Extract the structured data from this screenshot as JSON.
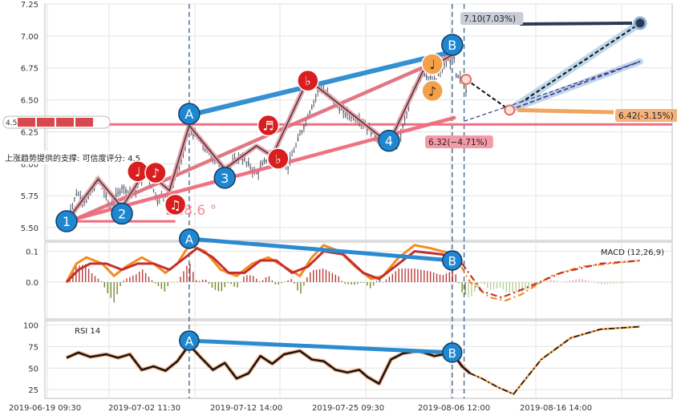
{
  "chart_data": [
    {
      "type": "candlestick",
      "panel": "price",
      "ylim": [
        5.4,
        7.25
      ],
      "yticks": [
        5.5,
        5.75,
        6.0,
        6.25,
        6.5,
        6.75,
        7.0,
        7.25
      ],
      "ytick_labels": [
        "5.50",
        "5.75",
        "6.00",
        "6.25",
        "6.50",
        "6.75",
        "7.00",
        "7.25"
      ],
      "xticks": [
        "2019-06-19 09:30",
        "2019-07-02 11:30",
        "2019-07-12 14:00",
        "2019-07-25 09:30",
        "2019-08-06 12:00",
        "2019-08-16 14:00"
      ],
      "close_path": [
        [
          0,
          5.55
        ],
        [
          5,
          5.77
        ],
        [
          10,
          5.7
        ],
        [
          16,
          5.88
        ],
        [
          22,
          5.66
        ],
        [
          28,
          5.82
        ],
        [
          34,
          5.76
        ],
        [
          40,
          5.94
        ],
        [
          46,
          5.72
        ],
        [
          52,
          5.79
        ],
        [
          58,
          6.02
        ],
        [
          62,
          6.28
        ],
        [
          70,
          6.12
        ],
        [
          80,
          5.95
        ],
        [
          88,
          6.06
        ],
        [
          96,
          5.92
        ],
        [
          104,
          6.1
        ],
        [
          112,
          5.98
        ],
        [
          120,
          6.3
        ],
        [
          128,
          6.6
        ],
        [
          134,
          6.52
        ],
        [
          140,
          6.4
        ],
        [
          148,
          6.35
        ],
        [
          156,
          6.22
        ],
        [
          163,
          6.14
        ],
        [
          168,
          6.18
        ],
        [
          174,
          6.5
        ],
        [
          180,
          6.72
        ],
        [
          186,
          6.64
        ],
        [
          192,
          6.8
        ],
        [
          196,
          6.82
        ],
        [
          197,
          6.68
        ],
        [
          200,
          6.66
        ],
        [
          202,
          6.58
        ]
      ],
      "wave_points": [
        {
          "label": "1",
          "x": 0,
          "y": 5.5
        },
        {
          "label": "2",
          "x": 28,
          "y": 5.56
        },
        {
          "label": "3",
          "x": 80,
          "y": 5.84
        },
        {
          "label": "4",
          "x": 163,
          "y": 6.13
        },
        {
          "label": "A",
          "x": 62,
          "y": 6.34
        },
        {
          "label": "B",
          "x": 195,
          "y": 6.88
        }
      ],
      "pattern_lines": [
        {
          "from": [
            5,
            5.57
          ],
          "to": [
            196,
            6.86
          ],
          "color": "#e0707f"
        },
        {
          "from": [
            0,
            5.55
          ],
          "to": [
            196,
            6.36
          ],
          "color": "#f06b7c"
        },
        {
          "from": [
            62,
            6.38
          ],
          "to": [
            196,
            6.88
          ],
          "color": "#2a8bd0"
        }
      ],
      "notes": [
        {
          "glyph": "♩",
          "x": 36,
          "y": 5.94
        },
        {
          "glyph": "♪",
          "x": 45,
          "y": 5.93
        },
        {
          "glyph": "♫",
          "x": 55,
          "y": 5.68
        },
        {
          "glyph": "♬",
          "x": 102,
          "y": 6.3
        },
        {
          "glyph": "♭",
          "x": 107,
          "y": 6.04
        },
        {
          "glyph": "♭",
          "x": 122,
          "y": 6.65
        },
        {
          "glyph": "♩",
          "x": 185,
          "y": 6.78
        },
        {
          "glyph": "♪",
          "x": 185,
          "y": 6.57
        }
      ],
      "support_level": 6.32,
      "support_badges": [
        "4.5"
      ],
      "support_text": "上涨趋势提供的支撑: 可信度评分: 4.5",
      "angle_text": "∆28.6 °",
      "targets": [
        {
          "label": "7.10(7.03%)",
          "value": 7.1
        },
        {
          "label": "6.42(-3.15%)",
          "value": 6.42
        },
        {
          "label": "6.32(−4.71%)",
          "value": 6.32
        }
      ],
      "projection": [
        [
          202,
          6.66
        ],
        [
          210,
          6.55
        ],
        [
          218,
          6.46
        ],
        [
          224,
          6.42
        ],
        [
          290,
          7.1
        ]
      ],
      "projection_alt": [
        [
          224,
          6.42
        ],
        [
          290,
          6.8
        ]
      ],
      "cursor_lines_x": [
        62,
        195,
        201
      ]
    },
    {
      "type": "macd",
      "panel": "macd",
      "label": "MACD (12,26,9)",
      "ylim": [
        -0.12,
        0.13
      ],
      "yticks": [
        0.1,
        0.0
      ],
      "ytick_labels": [
        "0.1",
        "0.0"
      ],
      "macd_path": [
        [
          0,
          0.0
        ],
        [
          5,
          0.06
        ],
        [
          10,
          0.08
        ],
        [
          18,
          0.06
        ],
        [
          24,
          0.02
        ],
        [
          30,
          0.05
        ],
        [
          38,
          0.08
        ],
        [
          44,
          0.06
        ],
        [
          50,
          0.03
        ],
        [
          56,
          0.06
        ],
        [
          62,
          0.12
        ],
        [
          70,
          0.1
        ],
        [
          78,
          0.04
        ],
        [
          86,
          0.02
        ],
        [
          94,
          0.06
        ],
        [
          102,
          0.08
        ],
        [
          110,
          0.05
        ],
        [
          118,
          0.02
        ],
        [
          124,
          0.08
        ],
        [
          130,
          0.12
        ],
        [
          138,
          0.1
        ],
        [
          146,
          0.05
        ],
        [
          154,
          0.01
        ],
        [
          160,
          0.02
        ],
        [
          168,
          0.08
        ],
        [
          176,
          0.12
        ],
        [
          184,
          0.11
        ],
        [
          196,
          0.09
        ],
        [
          204,
          0.0
        ],
        [
          214,
          -0.05
        ],
        [
          222,
          -0.06
        ],
        [
          230,
          -0.04
        ],
        [
          245,
          0.02
        ],
        [
          260,
          0.05
        ],
        [
          275,
          0.06
        ],
        [
          290,
          0.07
        ]
      ],
      "signal_path": [
        [
          0,
          0.0
        ],
        [
          6,
          0.04
        ],
        [
          12,
          0.06
        ],
        [
          20,
          0.06
        ],
        [
          28,
          0.04
        ],
        [
          36,
          0.06
        ],
        [
          44,
          0.06
        ],
        [
          52,
          0.04
        ],
        [
          60,
          0.08
        ],
        [
          66,
          0.11
        ],
        [
          74,
          0.08
        ],
        [
          82,
          0.03
        ],
        [
          90,
          0.03
        ],
        [
          98,
          0.07
        ],
        [
          106,
          0.07
        ],
        [
          114,
          0.03
        ],
        [
          122,
          0.05
        ],
        [
          130,
          0.1
        ],
        [
          140,
          0.09
        ],
        [
          150,
          0.03
        ],
        [
          158,
          0.01
        ],
        [
          166,
          0.05
        ],
        [
          176,
          0.1
        ],
        [
          190,
          0.09
        ],
        [
          200,
          0.06
        ],
        [
          210,
          -0.03
        ],
        [
          220,
          -0.05
        ],
        [
          232,
          -0.02
        ],
        [
          250,
          0.03
        ],
        [
          270,
          0.06
        ],
        [
          290,
          0.07
        ]
      ],
      "divergence": {
        "from": [
          "A",
          62,
          0.12
        ],
        "to": [
          "B",
          195,
          0.07
        ]
      }
    },
    {
      "type": "rsi",
      "panel": "rsi",
      "label": "RSI 14",
      "ylim": [
        15,
        105
      ],
      "yticks": [
        100,
        75,
        50,
        25
      ],
      "ytick_labels": [
        "100",
        "75",
        "50",
        "25"
      ],
      "rsi_path": [
        [
          0,
          62
        ],
        [
          6,
          68
        ],
        [
          12,
          63
        ],
        [
          20,
          66
        ],
        [
          26,
          62
        ],
        [
          32,
          66
        ],
        [
          38,
          48
        ],
        [
          44,
          52
        ],
        [
          50,
          47
        ],
        [
          56,
          58
        ],
        [
          62,
          77
        ],
        [
          68,
          62
        ],
        [
          74,
          48
        ],
        [
          80,
          56
        ],
        [
          86,
          38
        ],
        [
          92,
          44
        ],
        [
          98,
          64
        ],
        [
          104,
          55
        ],
        [
          110,
          66
        ],
        [
          118,
          70
        ],
        [
          124,
          60
        ],
        [
          130,
          58
        ],
        [
          136,
          48
        ],
        [
          142,
          45
        ],
        [
          148,
          48
        ],
        [
          152,
          40
        ],
        [
          158,
          32
        ],
        [
          164,
          60
        ],
        [
          170,
          67
        ],
        [
          178,
          70
        ],
        [
          186,
          64
        ],
        [
          195,
          68
        ],
        [
          200,
          52
        ],
        [
          204,
          44
        ],
        [
          210,
          38
        ],
        [
          218,
          28
        ],
        [
          226,
          20
        ],
        [
          240,
          60
        ],
        [
          255,
          85
        ],
        [
          270,
          95
        ],
        [
          290,
          98
        ]
      ],
      "divergence": {
        "from": [
          "A",
          62,
          80
        ],
        "to": [
          "B",
          195,
          68
        ]
      }
    }
  ]
}
